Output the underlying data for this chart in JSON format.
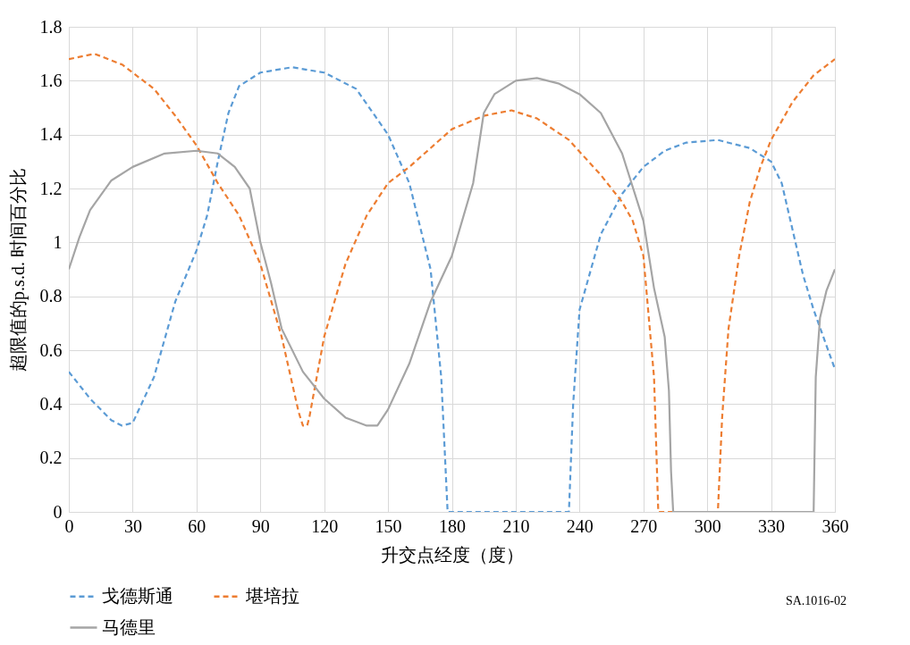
{
  "chart_data": {
    "type": "line",
    "xlabel": "升交点经度（度）",
    "ylabel": "超限值的p.s.d. 时间百分比",
    "xlim": [
      0,
      360
    ],
    "xticks": [
      0,
      30,
      60,
      90,
      120,
      150,
      180,
      210,
      240,
      270,
      300,
      330,
      360
    ],
    "ylim": [
      0,
      1.8
    ],
    "yticks": [
      0,
      0.2,
      0.4,
      0.6,
      0.8,
      1,
      1.2,
      1.4,
      1.6,
      1.8
    ],
    "grid": true,
    "legend": "bottom",
    "marker": "none",
    "annotations": [
      "SA.1016-02"
    ],
    "series": [
      {
        "name": "戈德斯通",
        "color": "#5b9bd5",
        "line_style": "dashed",
        "x": [
          0,
          10,
          20,
          25,
          30,
          40,
          50,
          60,
          65,
          70,
          75,
          80,
          90,
          105,
          120,
          135,
          150,
          160,
          170,
          175,
          178,
          235,
          237,
          240,
          250,
          260,
          270,
          280,
          290,
          305,
          320,
          330,
          335,
          340,
          345,
          350,
          360
        ],
        "values": [
          0.52,
          0.42,
          0.34,
          0.32,
          0.33,
          0.5,
          0.78,
          0.97,
          1.1,
          1.3,
          1.48,
          1.58,
          1.63,
          1.65,
          1.63,
          1.57,
          1.4,
          1.22,
          0.9,
          0.5,
          0,
          0,
          0.4,
          0.75,
          1.03,
          1.18,
          1.28,
          1.34,
          1.37,
          1.38,
          1.35,
          1.3,
          1.22,
          1.05,
          0.88,
          0.75,
          0.53
        ]
      },
      {
        "name": "堪培拉",
        "color": "#ed7d31",
        "line_style": "dashed",
        "x": [
          0,
          12,
          25,
          40,
          50,
          60,
          70,
          80,
          90,
          100,
          108,
          110,
          112,
          113,
          120,
          130,
          140,
          150,
          160,
          170,
          180,
          195,
          208,
          220,
          235,
          250,
          260,
          265,
          270,
          275,
          277,
          305,
          307,
          310,
          315,
          320,
          325,
          330,
          340,
          350,
          360
        ],
        "values": [
          1.68,
          1.7,
          1.66,
          1.57,
          1.47,
          1.36,
          1.22,
          1.1,
          0.92,
          0.65,
          0.37,
          0.32,
          0.32,
          0.35,
          0.65,
          0.92,
          1.1,
          1.22,
          1.28,
          1.35,
          1.42,
          1.47,
          1.49,
          1.46,
          1.38,
          1.25,
          1.15,
          1.08,
          0.95,
          0.5,
          0,
          0,
          0.35,
          0.68,
          0.95,
          1.15,
          1.28,
          1.38,
          1.52,
          1.62,
          1.68
        ]
      },
      {
        "name": "马德里",
        "color": "#a5a5a5",
        "line_style": "solid",
        "x": [
          0,
          5,
          10,
          20,
          30,
          45,
          60,
          70,
          78,
          85,
          90,
          95,
          100,
          110,
          120,
          130,
          140,
          145,
          150,
          160,
          170,
          180,
          190,
          195,
          200,
          210,
          220,
          230,
          240,
          250,
          260,
          270,
          275,
          280,
          282,
          283,
          284,
          350,
          351,
          353,
          356,
          360
        ],
        "values": [
          0.9,
          1.02,
          1.12,
          1.23,
          1.28,
          1.33,
          1.34,
          1.33,
          1.28,
          1.2,
          1.0,
          0.85,
          0.68,
          0.52,
          0.42,
          0.35,
          0.32,
          0.32,
          0.38,
          0.55,
          0.78,
          0.95,
          1.22,
          1.48,
          1.55,
          1.6,
          1.61,
          1.59,
          1.55,
          1.48,
          1.33,
          1.08,
          0.83,
          0.65,
          0.45,
          0.15,
          0,
          0,
          0.5,
          0.72,
          0.82,
          0.9
        ]
      }
    ]
  }
}
